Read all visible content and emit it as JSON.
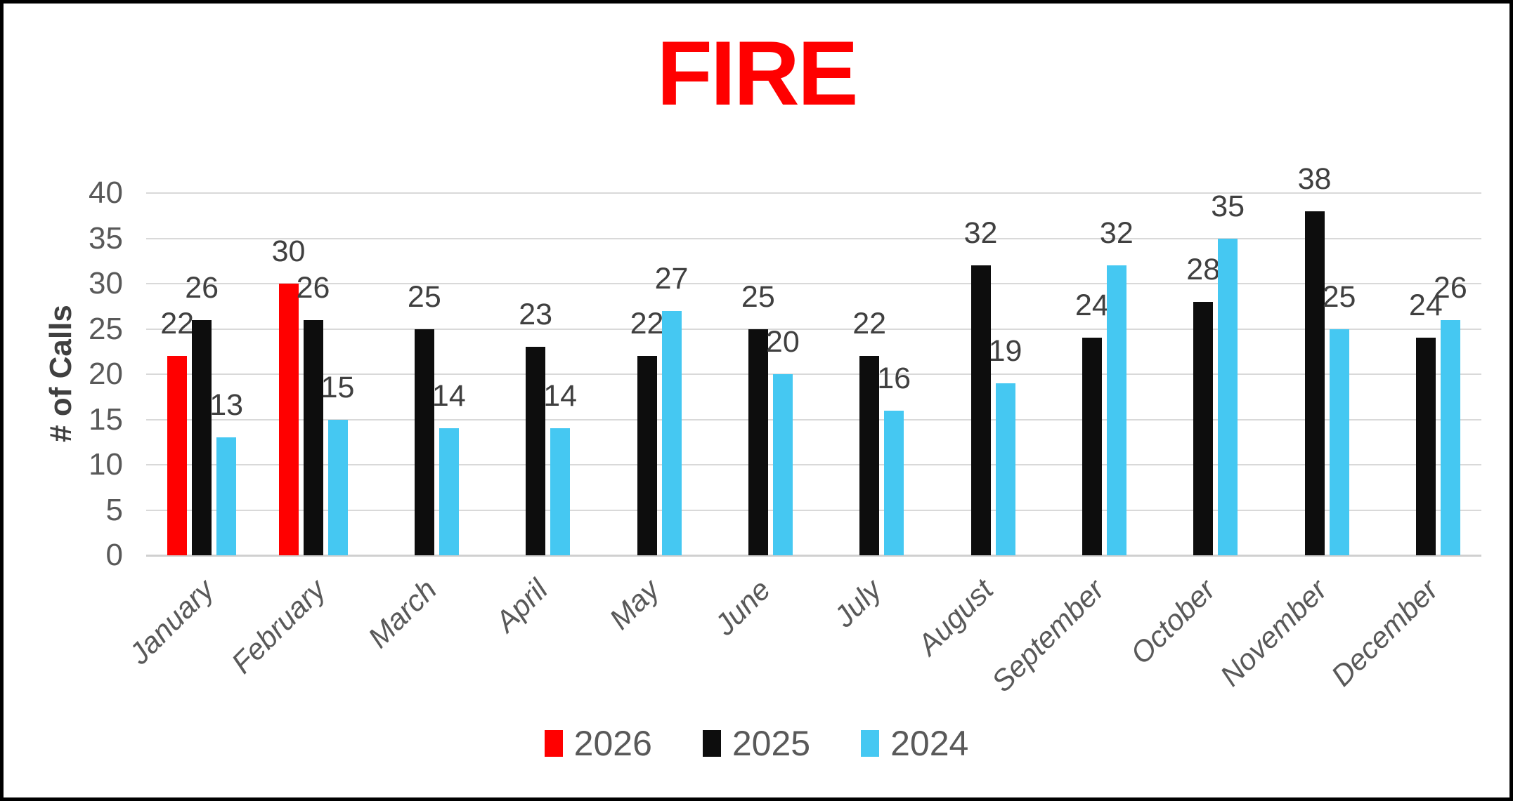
{
  "title": "FIRE",
  "y_axis_title": "# of Calls",
  "chart_data": {
    "type": "bar",
    "title": "FIRE",
    "xlabel": "",
    "ylabel": "# of Calls",
    "ylim": [
      0,
      40
    ],
    "yticks": [
      0,
      5,
      10,
      15,
      20,
      25,
      30,
      35,
      40
    ],
    "grid": true,
    "data_labels": true,
    "legend_position": "bottom",
    "categories": [
      "January",
      "February",
      "March",
      "April",
      "May",
      "June",
      "July",
      "August",
      "September",
      "October",
      "November",
      "December"
    ],
    "series": [
      {
        "name": "2026",
        "color": "#FF0000",
        "values": [
          22,
          30,
          null,
          null,
          null,
          null,
          null,
          null,
          null,
          null,
          null,
          null
        ]
      },
      {
        "name": "2025",
        "color": "#0D0D0D",
        "values": [
          26,
          26,
          25,
          23,
          22,
          25,
          22,
          32,
          24,
          28,
          38,
          24
        ]
      },
      {
        "name": "2024",
        "color": "#45C8F2",
        "values": [
          13,
          15,
          14,
          14,
          27,
          20,
          16,
          19,
          32,
          35,
          25,
          26
        ]
      }
    ]
  },
  "colors": {
    "title": "#FF0000",
    "gridline": "#D9D9D9",
    "axis_line": "#D0D0D0",
    "tick_label": "#595959",
    "data_label": "#404040",
    "month_label": "#595959",
    "axis_title": "#404040",
    "legend_text": "#595959"
  }
}
